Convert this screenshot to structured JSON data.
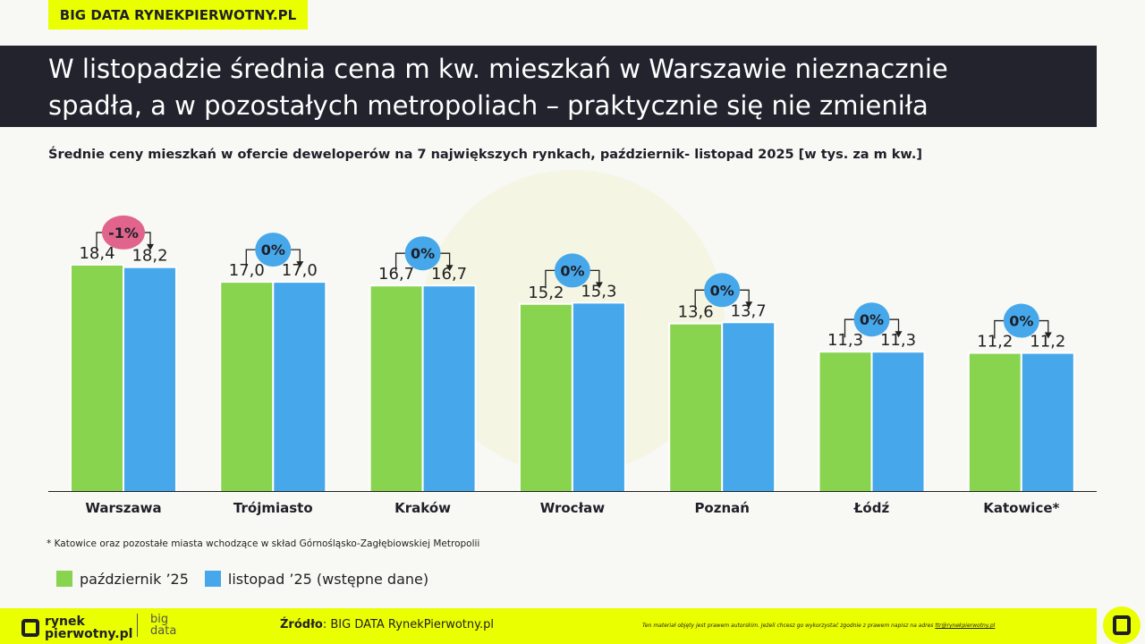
{
  "brand": "BIG DATA RYNEKPIERWOTNY.PL",
  "title_line1": "W listopadzie średnia cena m kw. mieszkań w Warszawie nieznacznie",
  "title_line2": "spadła, a w pozostałych metropoliach – praktycznie się nie zmieniła",
  "footnote": "* Katowice oraz pozostałe miasta wchodzące w skład Górnośląsko-Zagłębiowskiej Metropolii",
  "footer": {
    "logo_line1": "rynek",
    "logo_line2": "pierwotny.pl",
    "bigdata_line1": "big",
    "bigdata_line2": "data",
    "source_label": "Źródło",
    "source_text": ": BIG DATA RynekPierwotny.pl",
    "disclaimer": "Ten materiał objęty jest prawem autorskim. Jeżeli chcesz go wykorzystać zgodnie z prawem napisz na adres ",
    "disclaimer_email": "ttr@rynekpierwotny.pl"
  },
  "chart_data": {
    "type": "bar",
    "title": "Średnie ceny mieszkań w ofercie deweloperów na 7 największych rynkach, październik- listopad 2025 [w tys. za m kw.]",
    "categories": [
      "Warszawa",
      "Trójmiasto",
      "Kraków",
      "Wrocław",
      "Poznań",
      "Łódź",
      "Katowice*"
    ],
    "series": [
      {
        "name": "październik  ’25",
        "color": "#88d44e",
        "values": [
          18.4,
          17.0,
          16.7,
          15.2,
          13.6,
          11.3,
          11.2
        ],
        "labels": [
          "18,4",
          "17,0",
          "16,7",
          "15,2",
          "13,6",
          "11,3",
          "11,2"
        ]
      },
      {
        "name": "listopad ’25 (wstępne dane)",
        "color": "#46a8ea",
        "values": [
          18.2,
          17.0,
          16.7,
          15.3,
          13.7,
          11.3,
          11.2
        ],
        "labels": [
          "18,2",
          "17,0",
          "16,7",
          "15,3",
          "13,7",
          "11,3",
          "11,2"
        ]
      }
    ],
    "changes": [
      "-1%",
      "0%",
      "0%",
      "0%",
      "0%",
      "0%",
      "0%"
    ],
    "change_colors": {
      "negative": "#e0648c",
      "neutral": "#46a8ea"
    },
    "ylim": [
      0,
      20
    ],
    "grid": false,
    "legend": "bottom-left"
  }
}
